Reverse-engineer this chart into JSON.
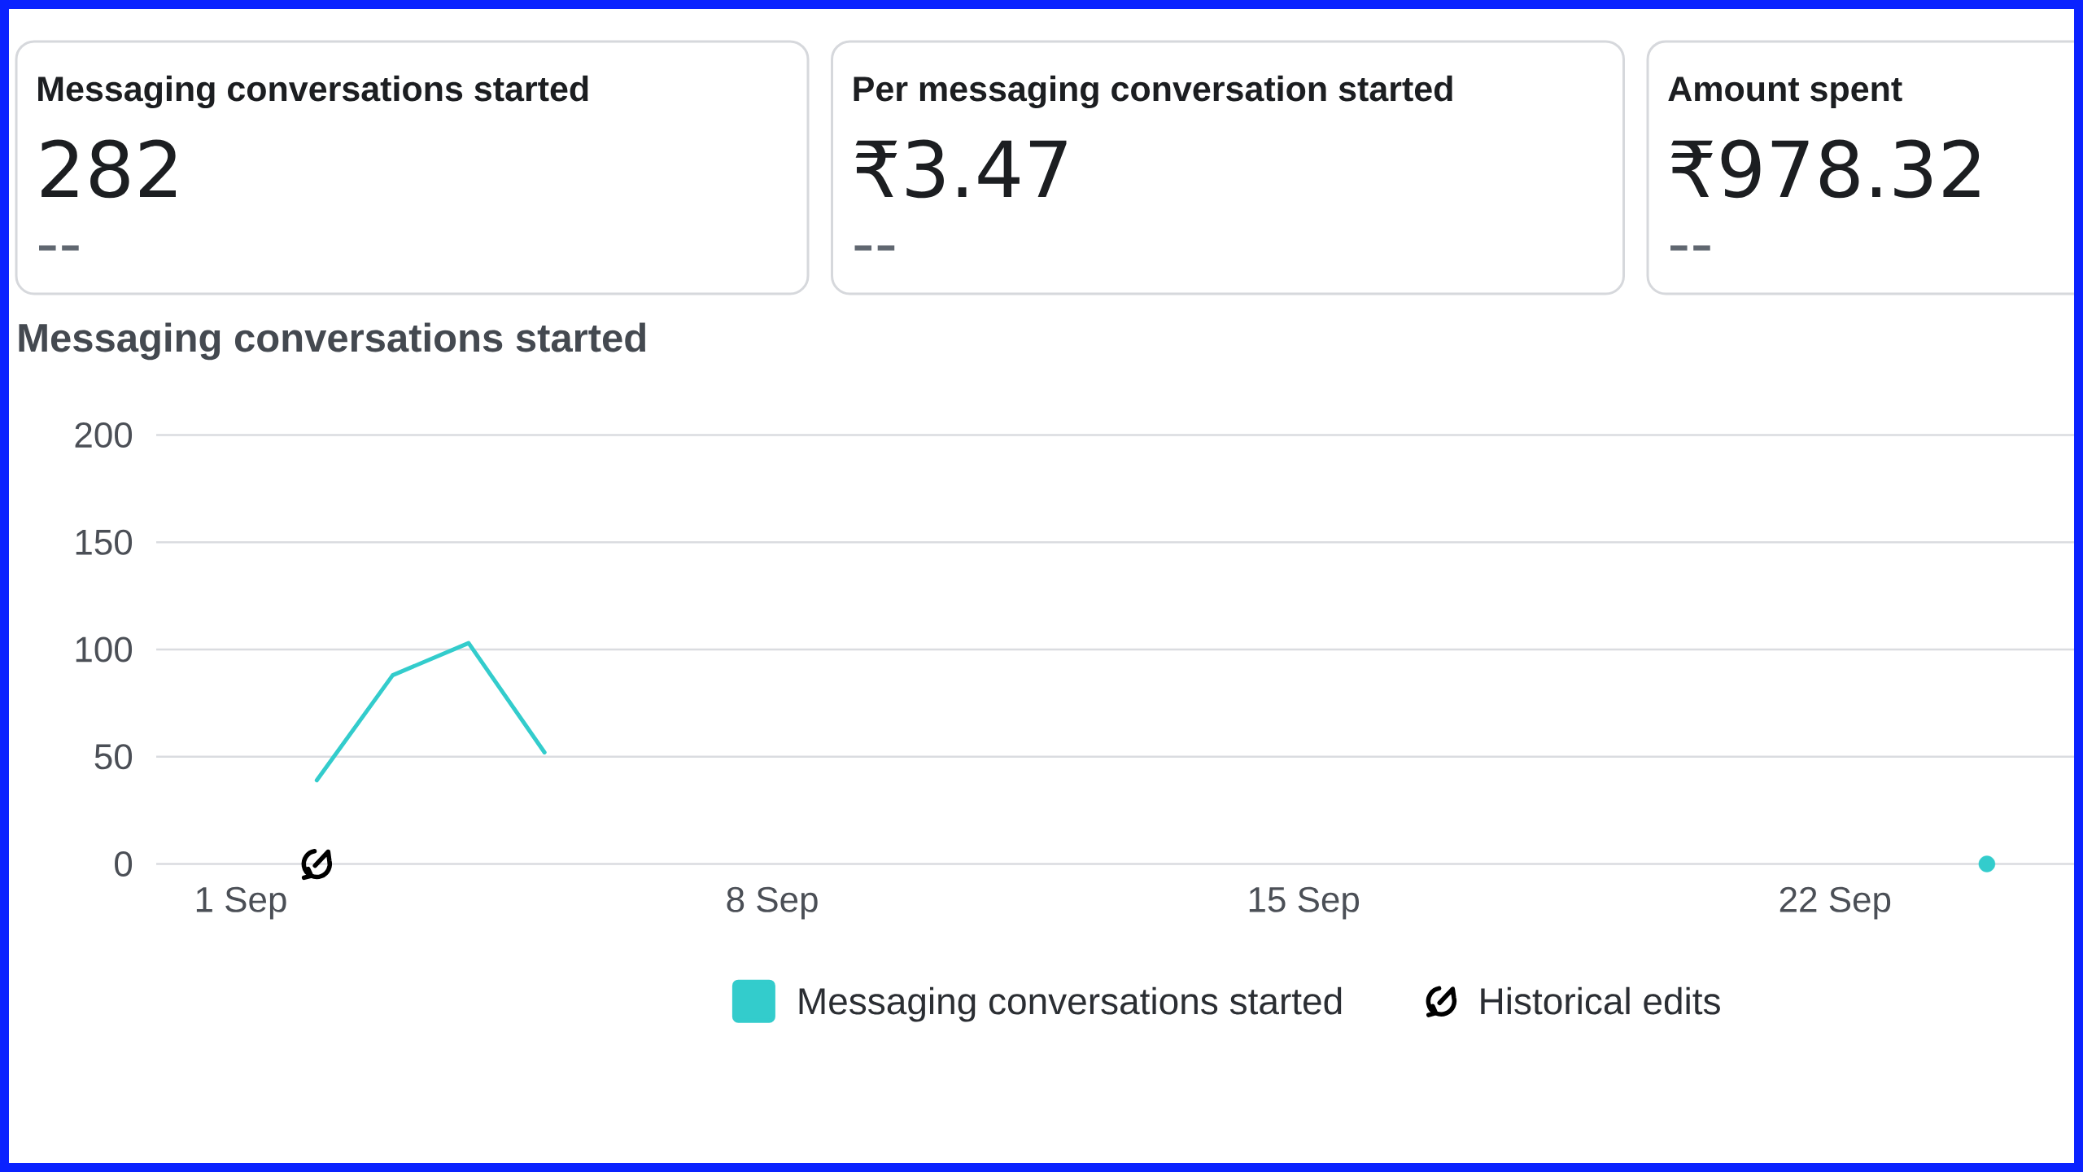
{
  "chart_data": [
    {
      "type": "other",
      "title": "Messaging conversations started",
      "annotations": [
        "282",
        "--"
      ]
    },
    {
      "type": "other",
      "title": "Per messaging conversation started",
      "annotations": [
        "₹3.47",
        "--"
      ]
    },
    {
      "type": "other",
      "title": "Amount spent",
      "annotations": [
        "₹978.32",
        "--"
      ]
    },
    {
      "type": "line",
      "title": "Messaging conversations started",
      "categories": [
        "1 Sep",
        null,
        null,
        null,
        null,
        null,
        null,
        "8 Sep",
        null,
        null,
        null,
        null,
        null,
        null,
        "15 Sep",
        null,
        null,
        null,
        null,
        null,
        null,
        "22 Sep",
        null,
        null
      ],
      "series": [
        {
          "name": "Messaging conversations started",
          "color": "#33cccc",
          "values": [
            null,
            39,
            88,
            103,
            52,
            null,
            null,
            null,
            null,
            null,
            null,
            null,
            null,
            null,
            null,
            null,
            null,
            null,
            null,
            null,
            null,
            null,
            null,
            0
          ]
        },
        {
          "name": "Historical edits",
          "type": "scatter",
          "color": "#000000",
          "values": [
            null,
            0,
            null,
            null,
            null,
            null,
            null,
            null,
            null,
            null,
            null,
            null,
            null,
            null,
            null,
            null,
            null,
            null,
            null,
            null,
            null,
            null,
            null,
            null
          ]
        }
      ],
      "ylim": [
        0,
        200
      ],
      "yticks": [
        0,
        50,
        100,
        150,
        200
      ],
      "grid": "y",
      "legend": "bottom"
    }
  ]
}
